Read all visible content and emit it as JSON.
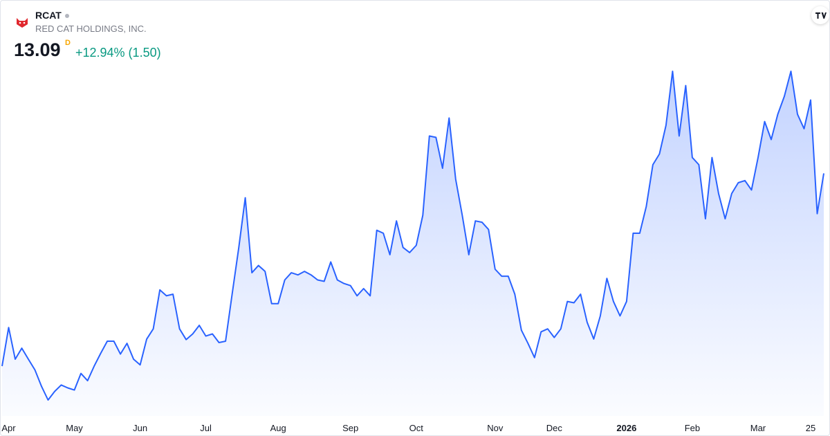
{
  "header": {
    "symbol": "RCAT",
    "company": "RED CAT HOLDINGS, INC.",
    "price": "13.09",
    "interval": "D",
    "change": "+12.94% (1.50)"
  },
  "chart_data": {
    "type": "area",
    "color": "#2962ff",
    "categories": [
      null,
      "Apr",
      null,
      null,
      null,
      null,
      null,
      null,
      null,
      null,
      null,
      "May",
      null,
      null,
      null,
      null,
      null,
      null,
      null,
      null,
      null,
      "Jun",
      null,
      null,
      null,
      null,
      null,
      null,
      null,
      null,
      null,
      "Jul",
      null,
      null,
      null,
      null,
      null,
      null,
      null,
      null,
      null,
      null,
      "Aug",
      null,
      null,
      null,
      null,
      null,
      null,
      null,
      null,
      null,
      null,
      "Sep",
      null,
      null,
      null,
      null,
      null,
      null,
      null,
      null,
      null,
      "Oct",
      null,
      null,
      null,
      null,
      null,
      null,
      null,
      null,
      null,
      null,
      null,
      "Nov",
      null,
      null,
      null,
      null,
      null,
      null,
      null,
      null,
      "Dec",
      null,
      null,
      null,
      null,
      null,
      null,
      null,
      null,
      null,
      null,
      "2026",
      null,
      null,
      null,
      null,
      null,
      null,
      null,
      null,
      null,
      "Feb",
      null,
      null,
      null,
      null,
      null,
      null,
      null,
      null,
      null,
      "Mar",
      null,
      null,
      null,
      null,
      null,
      null,
      null,
      "25",
      null,
      null
    ],
    "values": [
      5.91,
      7.35,
      6.17,
      6.58,
      6.17,
      5.77,
      5.16,
      4.65,
      4.97,
      5.21,
      5.1,
      5.02,
      5.64,
      5.37,
      5.91,
      6.39,
      6.84,
      6.84,
      6.36,
      6.76,
      6.17,
      5.96,
      6.92,
      7.3,
      8.75,
      8.53,
      8.59,
      7.3,
      6.9,
      7.11,
      7.43,
      7.03,
      7.11,
      6.79,
      6.84,
      8.59,
      10.3,
      12.18,
      9.39,
      9.66,
      9.44,
      8.24,
      8.24,
      9.12,
      9.39,
      9.31,
      9.44,
      9.31,
      9.12,
      9.07,
      9.79,
      9.12,
      8.99,
      8.91,
      8.53,
      8.8,
      8.53,
      10.97,
      10.86,
      10.06,
      11.32,
      10.33,
      10.14,
      10.41,
      11.53,
      14.48,
      14.43,
      13.28,
      15.15,
      12.87,
      11.53,
      10.06,
      11.32,
      11.27,
      11.0,
      9.52,
      9.26,
      9.26,
      8.59,
      7.25,
      6.76,
      6.23,
      7.19,
      7.3,
      6.98,
      7.3,
      8.32,
      8.27,
      8.59,
      7.54,
      6.92,
      7.78,
      9.18,
      8.32,
      7.78,
      8.32,
      10.86,
      10.86,
      11.86,
      13.41,
      13.81,
      14.88,
      16.89,
      14.48,
      16.36,
      13.68,
      13.41,
      11.4,
      13.68,
      12.34,
      11.4,
      12.34,
      12.74,
      12.82,
      12.47,
      13.68,
      15.02,
      14.35,
      15.29,
      15.96,
      16.89,
      15.29,
      14.75,
      15.82,
      11.59,
      13.09
    ]
  }
}
